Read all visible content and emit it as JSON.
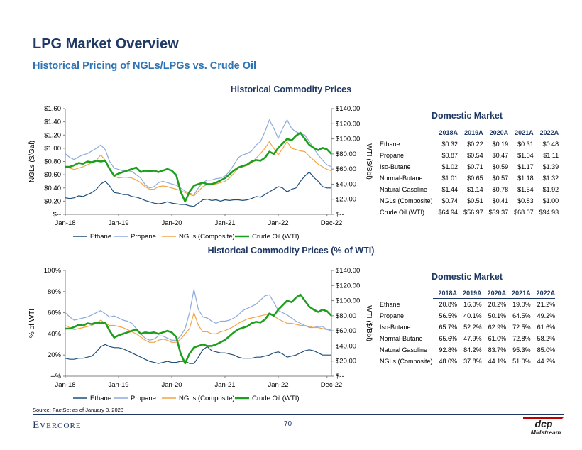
{
  "page": {
    "title": "LPG Market Overview",
    "subtitle": "Historical Pricing of NGLs/LPGs vs. Crude Oil",
    "source": "Source: FactSet as of January 3, 2023",
    "footer_brand": "Evercore",
    "page_number": "70",
    "logo_text_top": "dcp",
    "logo_text_bottom": "Midstream"
  },
  "colors": {
    "ethane": "#1f4e79",
    "propane": "#8eaadb",
    "ngls": "#f4a443",
    "crude": "#1e9e1e",
    "brand": "#1f3864"
  },
  "chart_data": [
    {
      "type": "line",
      "title": "Historical Commodity Prices",
      "x_ticks": [
        "Jan-18",
        "Jan-19",
        "Jan-20",
        "Jan-21",
        "Jan-22",
        "Dec-22"
      ],
      "ylabel": "NGLs ($/Gal)",
      "ylabel2": "WTI ($/Bbl)",
      "y_ticks": [
        "$--",
        "$0.20",
        "$0.40",
        "$0.60",
        "$0.80",
        "$1.00",
        "$1.20",
        "$1.40",
        "$1.60"
      ],
      "y2_ticks": [
        "$--",
        "$20.00",
        "$40.00",
        "$60.00",
        "$80.00",
        "$100.00",
        "$120.00",
        "$140.00"
      ],
      "ylim": [
        0,
        1.6
      ],
      "y2lim": [
        0,
        140
      ],
      "legend": "bottom",
      "series": [
        {
          "name": "Ethane",
          "axis": "left",
          "values": [
            0.25,
            0.24,
            0.25,
            0.28,
            0.27,
            0.3,
            0.33,
            0.38,
            0.46,
            0.5,
            0.43,
            0.33,
            0.32,
            0.3,
            0.3,
            0.27,
            0.26,
            0.24,
            0.21,
            0.19,
            0.17,
            0.16,
            0.17,
            0.19,
            0.17,
            0.16,
            0.15,
            0.15,
            0.13,
            0.12,
            0.17,
            0.22,
            0.23,
            0.21,
            0.22,
            0.2,
            0.22,
            0.21,
            0.22,
            0.22,
            0.21,
            0.22,
            0.24,
            0.27,
            0.26,
            0.3,
            0.34,
            0.38,
            0.42,
            0.4,
            0.34,
            0.38,
            0.4,
            0.5,
            0.58,
            0.64,
            0.56,
            0.5,
            0.42,
            0.4,
            0.4
          ]
        },
        {
          "name": "Propane",
          "axis": "left",
          "values": [
            0.92,
            0.86,
            0.83,
            0.87,
            0.9,
            0.92,
            0.96,
            1.0,
            1.05,
            0.98,
            0.8,
            0.7,
            0.68,
            0.66,
            0.66,
            0.65,
            0.6,
            0.55,
            0.45,
            0.4,
            0.42,
            0.48,
            0.5,
            0.48,
            0.46,
            0.44,
            0.4,
            0.35,
            0.32,
            0.3,
            0.4,
            0.48,
            0.52,
            0.52,
            0.54,
            0.55,
            0.58,
            0.65,
            0.75,
            0.86,
            0.9,
            0.92,
            0.96,
            1.05,
            1.1,
            1.25,
            1.43,
            1.3,
            1.15,
            1.3,
            1.43,
            1.3,
            1.25,
            1.22,
            1.2,
            1.1,
            1.0,
            0.9,
            0.82,
            0.75,
            0.72
          ]
        },
        {
          "name": "NGLs (Composite)",
          "axis": "left",
          "values": [
            0.72,
            0.7,
            0.68,
            0.7,
            0.72,
            0.75,
            0.78,
            0.82,
            0.9,
            0.82,
            0.68,
            0.58,
            0.55,
            0.56,
            0.56,
            0.55,
            0.52,
            0.48,
            0.42,
            0.38,
            0.38,
            0.42,
            0.43,
            0.42,
            0.4,
            0.38,
            0.36,
            0.33,
            0.3,
            0.28,
            0.35,
            0.42,
            0.45,
            0.45,
            0.46,
            0.48,
            0.5,
            0.55,
            0.62,
            0.7,
            0.72,
            0.74,
            0.78,
            0.85,
            0.92,
            1.0,
            1.1,
            1.0,
            0.9,
            1.0,
            1.1,
            1.0,
            0.98,
            0.96,
            0.95,
            0.88,
            0.82,
            0.76,
            0.72,
            0.68,
            0.66
          ]
        },
        {
          "name": "Crude Oil (WTI)",
          "axis": "right",
          "values": [
            63,
            63,
            65,
            68,
            67,
            70,
            69,
            71,
            70,
            71,
            60,
            51,
            54,
            56,
            58,
            60,
            62,
            56,
            58,
            57,
            58,
            56,
            58,
            60,
            58,
            52,
            30,
            17,
            30,
            38,
            40,
            42,
            40,
            40,
            42,
            45,
            48,
            53,
            58,
            62,
            64,
            66,
            70,
            72,
            71,
            75,
            83,
            80,
            88,
            94,
            100,
            98,
            104,
            108,
            100,
            92,
            88,
            85,
            88,
            86,
            80
          ]
        }
      ]
    },
    {
      "type": "line",
      "title": "Historical Commodity Prices (% of WTI)",
      "x_ticks": [
        "Jan-18",
        "Jan-19",
        "Jan-20",
        "Jan-21",
        "Jan-22",
        "Dec-22"
      ],
      "ylabel": "% of WTI",
      "ylabel2": "WTI ($/Bbl)",
      "y_ticks": [
        "--%",
        "20%",
        "40%",
        "60%",
        "80%",
        "100%"
      ],
      "y2_ticks": [
        "$--",
        "$20.00",
        "$40.00",
        "$60.00",
        "$80.00",
        "$100.00",
        "$120.00",
        "$140.00"
      ],
      "ylim": [
        0,
        100
      ],
      "y2lim": [
        0,
        140
      ],
      "legend": "bottom",
      "series": [
        {
          "name": "Ethane",
          "axis": "left",
          "values": [
            17,
            16,
            16,
            17,
            17,
            18,
            19,
            23,
            28,
            30,
            28,
            27,
            27,
            26,
            24,
            22,
            20,
            18,
            16,
            14,
            13,
            12,
            13,
            14,
            13,
            13,
            14,
            14,
            12,
            12,
            18,
            25,
            28,
            24,
            23,
            22,
            22,
            21,
            20,
            18,
            17,
            17,
            17,
            18,
            18,
            19,
            20,
            22,
            23,
            21,
            18,
            19,
            20,
            22,
            24,
            25,
            24,
            22,
            20,
            20,
            20
          ]
        },
        {
          "name": "Propane",
          "axis": "left",
          "values": [
            60,
            56,
            53,
            54,
            55,
            56,
            58,
            60,
            62,
            59,
            56,
            57,
            55,
            53,
            52,
            50,
            45,
            40,
            36,
            34,
            35,
            38,
            38,
            36,
            34,
            34,
            38,
            45,
            60,
            82,
            63,
            56,
            55,
            52,
            50,
            52,
            52,
            53,
            55,
            58,
            62,
            64,
            66,
            68,
            72,
            76,
            77,
            70,
            62,
            60,
            58,
            55,
            52,
            50,
            48,
            46,
            46,
            47,
            47,
            44,
            43
          ]
        },
        {
          "name": "NGLs (Composite)",
          "axis": "left",
          "values": [
            48,
            46,
            44,
            45,
            46,
            47,
            48,
            50,
            53,
            50,
            48,
            48,
            47,
            46,
            44,
            42,
            40,
            37,
            34,
            32,
            32,
            34,
            35,
            34,
            32,
            32,
            35,
            40,
            45,
            60,
            48,
            42,
            42,
            40,
            40,
            42,
            43,
            45,
            47,
            50,
            52,
            54,
            55,
            56,
            57,
            58,
            59,
            57,
            54,
            52,
            50,
            50,
            49,
            48,
            48,
            47,
            46,
            46,
            45,
            44,
            44
          ]
        },
        {
          "name": "Crude Oil (WTI)",
          "axis": "right",
          "values": [
            63,
            63,
            65,
            68,
            67,
            70,
            69,
            71,
            70,
            71,
            60,
            51,
            54,
            56,
            58,
            60,
            62,
            56,
            58,
            57,
            58,
            56,
            58,
            60,
            58,
            52,
            30,
            17,
            30,
            38,
            40,
            42,
            40,
            40,
            42,
            45,
            48,
            53,
            58,
            62,
            64,
            66,
            70,
            72,
            71,
            75,
            83,
            80,
            88,
            94,
            100,
            98,
            104,
            108,
            100,
            92,
            88,
            85,
            88,
            86,
            80
          ]
        }
      ]
    }
  ],
  "tables": [
    {
      "title": "Domestic Market",
      "columns": [
        "2018A",
        "2019A",
        "2020A",
        "2021A",
        "2022A"
      ],
      "rows": [
        {
          "label": "Ethane",
          "values": [
            "$0.32",
            "$0.22",
            "$0.19",
            "$0.31",
            "$0.48"
          ]
        },
        {
          "label": "Propane",
          "values": [
            "$0.87",
            "$0.54",
            "$0.47",
            "$1.04",
            "$1.11"
          ]
        },
        {
          "label": "Iso-Butane",
          "values": [
            "$1.02",
            "$0.71",
            "$0.59",
            "$1.17",
            "$1.39"
          ]
        },
        {
          "label": "Normal-Butane",
          "values": [
            "$1.01",
            "$0.65",
            "$0.57",
            "$1.18",
            "$1.32"
          ]
        },
        {
          "label": "Natural Gasoline",
          "values": [
            "$1.44",
            "$1.14",
            "$0.78",
            "$1.54",
            "$1.92"
          ]
        },
        {
          "label": "NGLs (Composite)",
          "values": [
            "$0.74",
            "$0.51",
            "$0.41",
            "$0.83",
            "$1.00"
          ]
        },
        {
          "label": "Crude Oil (WTI)",
          "values": [
            "$64.94",
            "$56.97",
            "$39.37",
            "$68.07",
            "$94.93"
          ]
        }
      ]
    },
    {
      "title": "Domestic Market",
      "columns": [
        "2018A",
        "2019A",
        "2020A",
        "2021A",
        "2022A"
      ],
      "rows": [
        {
          "label": "Ethane",
          "values": [
            "20.8%",
            "16.0%",
            "20.2%",
            "19.0%",
            "21.2%"
          ]
        },
        {
          "label": "Propane",
          "values": [
            "56.5%",
            "40.1%",
            "50.1%",
            "64.5%",
            "49.2%"
          ]
        },
        {
          "label": "Iso-Butane",
          "values": [
            "65.7%",
            "52.2%",
            "62.9%",
            "72.5%",
            "61.6%"
          ]
        },
        {
          "label": "Normal-Butane",
          "values": [
            "65.6%",
            "47.9%",
            "61.0%",
            "72.8%",
            "58.2%"
          ]
        },
        {
          "label": "Natural Gasoline",
          "values": [
            "92.8%",
            "84.2%",
            "83.7%",
            "95.3%",
            "85.0%"
          ]
        },
        {
          "label": "NGLs (Composite)",
          "values": [
            "48.0%",
            "37.8%",
            "44.1%",
            "51.0%",
            "44.2%"
          ]
        }
      ]
    }
  ]
}
